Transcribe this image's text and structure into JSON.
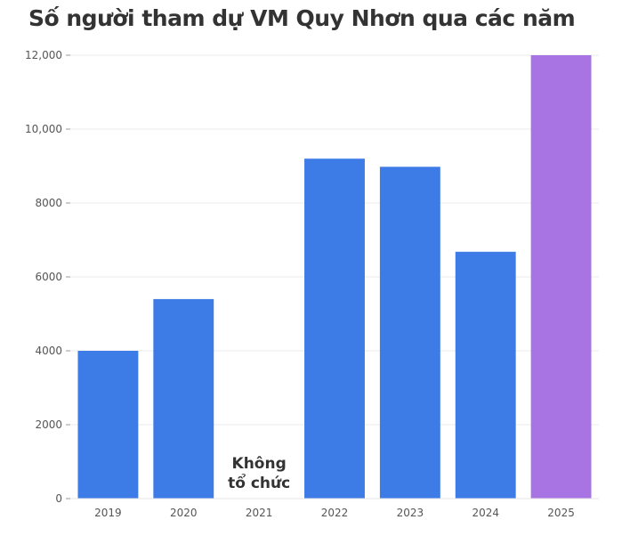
{
  "chart_data": {
    "type": "bar",
    "title": "Số người tham dự VM Quy Nhơn qua các năm",
    "xlabel": "",
    "ylabel": "",
    "categories": [
      "2019",
      "2020",
      "2021",
      "2022",
      "2023",
      "2024",
      "2025"
    ],
    "values": [
      4000,
      5400,
      null,
      9200,
      8980,
      6680,
      12000
    ],
    "ylim": [
      0,
      12000
    ],
    "yticks": [
      0,
      2000,
      4000,
      6000,
      8000,
      10000,
      12000
    ],
    "ytick_labels": [
      "0",
      "2000",
      "4000",
      "6000",
      "8000",
      "10,000",
      "12,000"
    ],
    "bar_colors": [
      "#3d7be6",
      "#3d7be6",
      "#3d7be6",
      "#3d7be6",
      "#3d7be6",
      "#3d7be6",
      "#a874e3"
    ],
    "grid": true,
    "annotations": [
      {
        "category": "2021",
        "lines": [
          "Không",
          "tổ chức"
        ]
      }
    ]
  }
}
